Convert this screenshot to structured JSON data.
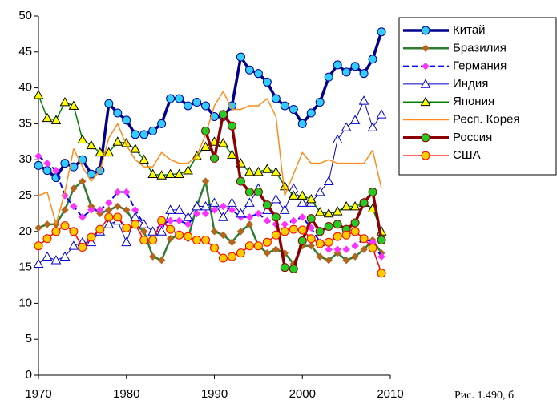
{
  "chart_data": {
    "type": "line",
    "caption": "Рис. 1.490, б",
    "x": [
      1970,
      1971,
      1972,
      1973,
      1974,
      1975,
      1976,
      1977,
      1978,
      1979,
      1980,
      1981,
      1982,
      1983,
      1984,
      1985,
      1986,
      1987,
      1988,
      1989,
      1990,
      1991,
      1992,
      1993,
      1994,
      1995,
      1996,
      1997,
      1998,
      1999,
      2000,
      2001,
      2002,
      2003,
      2004,
      2005,
      2006,
      2007,
      2008,
      2009
    ],
    "xlim": [
      1970,
      2010
    ],
    "xticks": [
      1970,
      1980,
      1990,
      2000,
      2010
    ],
    "ylim": [
      0,
      50
    ],
    "yticks": [
      0,
      5,
      10,
      15,
      20,
      25,
      30,
      35,
      40,
      45,
      50
    ],
    "grid": false,
    "legend": "right",
    "series": [
      {
        "name": "Китай",
        "color": "#00008b",
        "width": 3.5,
        "dashed": false,
        "marker": "circle",
        "marker_fill": "#33ccff",
        "values": [
          29.2,
          28.5,
          27.5,
          29.5,
          29.0,
          30.0,
          28.0,
          28.5,
          37.8,
          36.5,
          35.5,
          33.5,
          33.5,
          34.0,
          35.0,
          38.5,
          38.5,
          37.5,
          38.0,
          37.5,
          36.0,
          36.0,
          37.5,
          44.3,
          42.5,
          42.0,
          40.8,
          38.5,
          37.5,
          37.0,
          35.0,
          36.5,
          38.0,
          41.5,
          43.2,
          42.2,
          43.0,
          42.0,
          44.0,
          47.8
        ]
      },
      {
        "name": "Бразилия",
        "color": "#2e7d32",
        "width": 2.5,
        "dashed": false,
        "marker": "diamond",
        "marker_fill": "#b5651d",
        "values": [
          20.5,
          21,
          21,
          23,
          26,
          27,
          23.5,
          22.5,
          23,
          23.5,
          23,
          21,
          20,
          16.5,
          16,
          19,
          19.5,
          19,
          23.5,
          27,
          20,
          19.5,
          18.5,
          20,
          21,
          18,
          17,
          17.5,
          17,
          15.5,
          18,
          18,
          16.5,
          16,
          17,
          16,
          16.5,
          17.5,
          18.8,
          17
        ]
      },
      {
        "name": "Германия",
        "color": "#0000ff",
        "width": 2,
        "dashed": true,
        "marker": "diamond",
        "marker_fill": "#ff33ff",
        "values": [
          30.5,
          29.5,
          28.5,
          25,
          23.5,
          22,
          23,
          23,
          24,
          25.5,
          25.5,
          23,
          21,
          20,
          21,
          21.5,
          21.5,
          21,
          22.5,
          22.5,
          23,
          23.5,
          23,
          22,
          22,
          22.5,
          21.5,
          21,
          21,
          21.5,
          22,
          20.5,
          18.5,
          17.5,
          17.5,
          17.5,
          18,
          19,
          18.5,
          16.5
        ]
      },
      {
        "name": "Индия",
        "color": "#0000cc",
        "width": 1,
        "dashed": false,
        "marker": "triangle",
        "marker_fill": "#ffffff",
        "values": [
          15.5,
          16.5,
          16,
          16.5,
          18,
          18.5,
          18.5,
          20,
          21,
          21.5,
          18.5,
          22,
          21,
          20,
          20,
          23,
          23,
          22,
          23.5,
          23.5,
          24,
          22,
          24,
          22.5,
          24,
          26,
          23,
          24.5,
          23,
          26,
          24,
          24,
          25.5,
          27,
          32.8,
          34.5,
          35.5,
          38.2,
          34.5,
          36.3
        ]
      },
      {
        "name": "Япония",
        "color": "#008000",
        "width": 1.5,
        "dashed": false,
        "marker": "triangle",
        "marker_fill": "#ffff00",
        "values": [
          39,
          35.8,
          35.5,
          38,
          37.5,
          32.8,
          32,
          31,
          31,
          32.5,
          32.3,
          31.5,
          30,
          28,
          27.8,
          28,
          28,
          28.5,
          30.5,
          31.8,
          32.5,
          32.3,
          30.7,
          29.5,
          28.3,
          28.3,
          28.7,
          28.3,
          26.3,
          25,
          25,
          24.5,
          22.7,
          22.5,
          22.8,
          23.5,
          23.5,
          24,
          23.2,
          20
        ]
      },
      {
        "name": "Респ. Корея",
        "color": "#ff8c1a",
        "width": 1.5,
        "dashed": false,
        "marker": "none",
        "marker_fill": "#ff8c1a",
        "values": [
          25,
          25.5,
          21,
          25.5,
          31.5,
          29,
          27,
          28.5,
          33,
          35,
          32,
          30,
          29,
          29,
          31,
          30,
          29.5,
          29.5,
          30.5,
          33.5,
          37.5,
          39.5,
          37,
          37,
          37.5,
          37.5,
          38.5,
          36,
          25,
          28,
          31,
          29.5,
          29.5,
          30,
          29.5,
          29.5,
          29.5,
          29.5,
          31.3,
          26
        ]
      },
      {
        "name": "Россия",
        "color": "#8b0000",
        "width": 3.5,
        "dashed": false,
        "marker": "circle",
        "marker_fill": "#22cc22",
        "values": [
          null,
          null,
          null,
          null,
          null,
          null,
          null,
          null,
          null,
          null,
          null,
          null,
          null,
          null,
          null,
          null,
          null,
          null,
          null,
          34,
          30.2,
          36.3,
          34.7,
          27,
          25.5,
          25.5,
          23.7,
          22,
          15,
          14.8,
          18.7,
          21.8,
          20,
          20.7,
          21,
          20.3,
          21.2,
          24,
          25.5,
          18.8
        ]
      },
      {
        "name": "США",
        "color": "#ff0000",
        "width": 1.5,
        "dashed": false,
        "marker": "circle",
        "marker_fill": "#ffcc00",
        "values": [
          18,
          19,
          20,
          20.8,
          20,
          17.8,
          19.2,
          20.3,
          22,
          22,
          20.5,
          21,
          18.8,
          18.8,
          21.5,
          20.3,
          19.5,
          19.3,
          18.8,
          18.8,
          17.7,
          16.3,
          16.5,
          17,
          18,
          18,
          18.5,
          19.5,
          20,
          20.3,
          20.2,
          19,
          18.3,
          18.5,
          19.3,
          19.5,
          20,
          19,
          17.7,
          14.2
        ]
      }
    ]
  }
}
